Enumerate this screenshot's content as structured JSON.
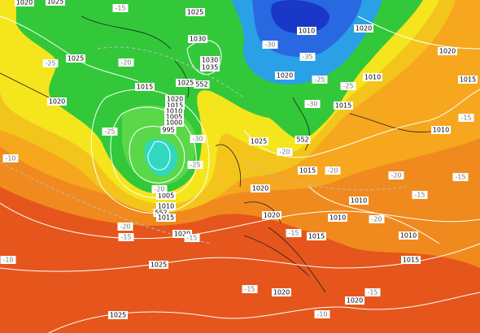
{
  "isobar_labels": [
    "1020",
    "1025",
    "1025",
    "1030",
    "1025",
    "1030",
    "1035",
    "1015",
    "1025",
    "552",
    "1020",
    "1020",
    "1015",
    "1010",
    "1005",
    "1000",
    "995",
    "1010",
    "1020",
    "1020",
    "1010",
    "1015",
    "1020",
    "1015",
    "1010",
    "1025",
    "552",
    "1015",
    "1020",
    "1010",
    "1010",
    "1020",
    "1015",
    "1010",
    "1015",
    "1005",
    "1010",
    "552",
    "1015",
    "1020",
    "1025",
    "1020",
    "1025",
    "1020"
  ],
  "temperature_labels": [
    "-15",
    "-25",
    "-20",
    "-30",
    "-35",
    "-25",
    "-25",
    "-30",
    "-25",
    "-30",
    "-25",
    "-20",
    "-20",
    "-15",
    "-15",
    "-10",
    "-15",
    "-20",
    "-20",
    "-20",
    "-15",
    "-15",
    "-20",
    "-15",
    "-10",
    "-15",
    "-10",
    "-15"
  ]
}
